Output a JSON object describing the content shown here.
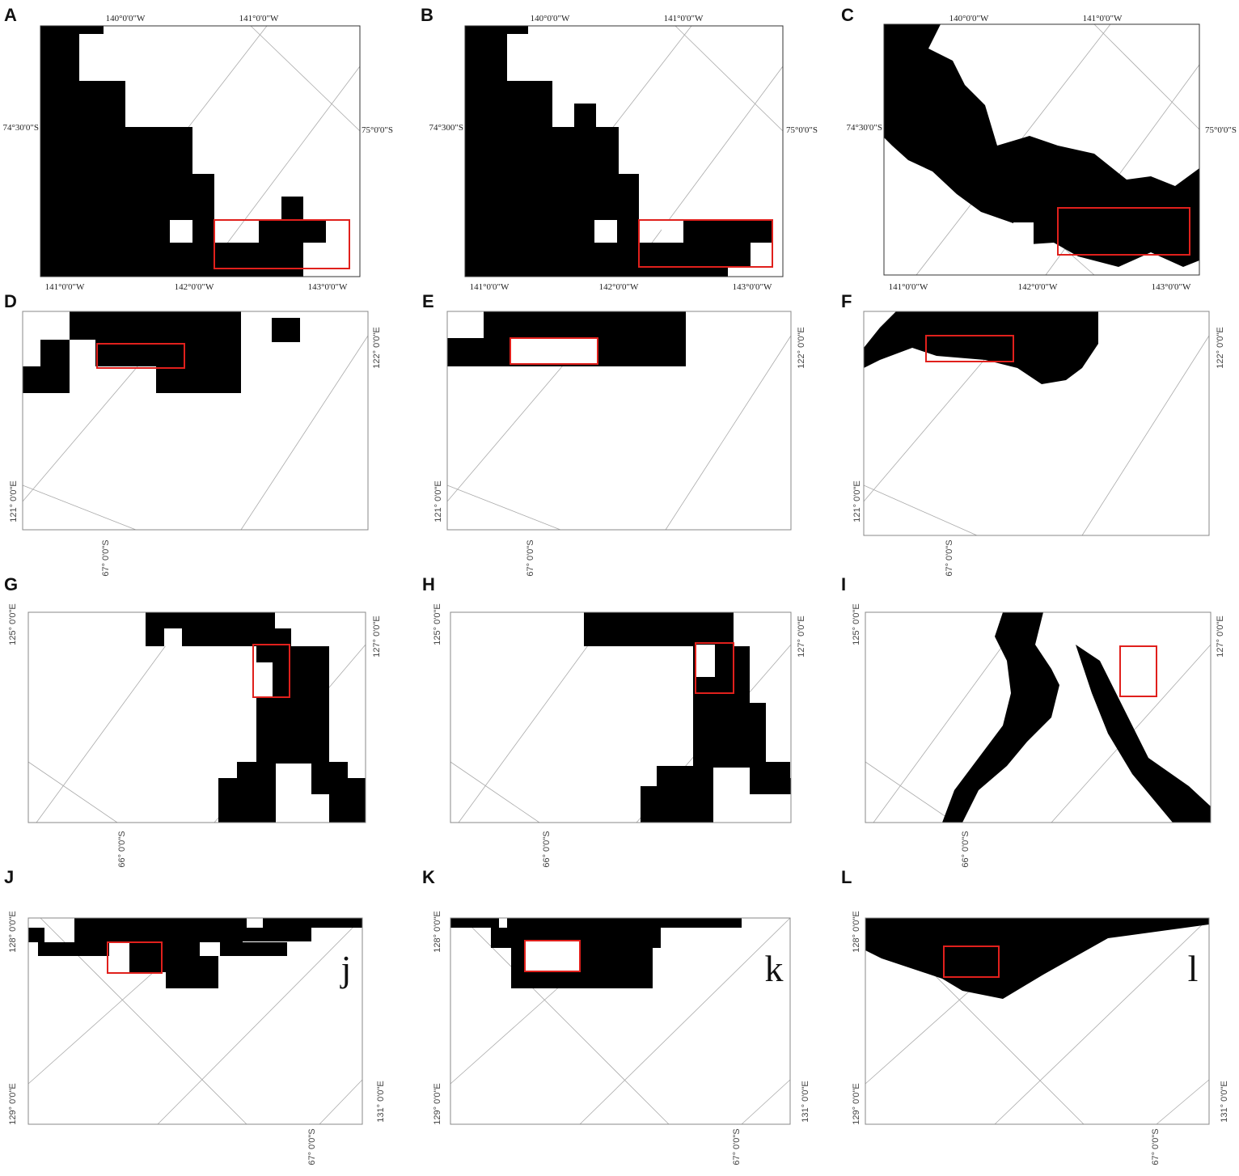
{
  "panels": [
    {
      "letter": "A",
      "labels": [
        "140°0'0\"W",
        "141°0'0\"W",
        "74°30'0\"S",
        "75°0'0\"S",
        "141°0'0\"W",
        "142°0'0\"W",
        "143°0'0\"W"
      ]
    },
    {
      "letter": "B",
      "labels": [
        "140°0'0\"W",
        "141°0'0\"W",
        "74°300\"S",
        "75°0'0\"S",
        "141°0'0\"W",
        "142°0'0\"W",
        "143°0'0\"W"
      ]
    },
    {
      "letter": "C",
      "labels": [
        "140°0'0\"W",
        "141°0'0\"W",
        "74°30'0\"S",
        "75°0'0\"S",
        "141°0'0\"W",
        "142°0'0\"W",
        "143°0'0\"W"
      ]
    },
    {
      "letter": "D",
      "labels": [
        "122° 0'0\"E",
        "121° 0'0\"E",
        "67° 0'0\"S"
      ]
    },
    {
      "letter": "E",
      "labels": [
        "122° 0'0\"E",
        "121° 0'0\"E",
        "67° 0'0\"S"
      ]
    },
    {
      "letter": "F",
      "labels": [
        "122° 0'0\"E",
        "121° 0'0\"E",
        "67° 0'0\"S"
      ]
    },
    {
      "letter": "G",
      "labels": [
        "125° 0'0\"E",
        "127° 0'0\"E",
        "66° 0'0\"S"
      ]
    },
    {
      "letter": "H",
      "labels": [
        "125° 0'0\"E",
        "127° 0'0\"E",
        "66° 0'0\"S"
      ]
    },
    {
      "letter": "I",
      "labels": [
        "125° 0'0\"E",
        "127° 0'0\"E",
        "66° 0'0\"S"
      ]
    },
    {
      "letter": "J",
      "labels": [
        "128° 0'0\"E",
        "129° 0'0\"E",
        "131° 0'0\"E",
        "67° 0'0\"S"
      ],
      "annotation": "j"
    },
    {
      "letter": "K",
      "labels": [
        "128° 0'0\"E",
        "129° 0'0\"E",
        "131° 0'0\"E",
        "67° 0'0\"S"
      ],
      "annotation": "k"
    },
    {
      "letter": "L",
      "labels": [
        "128° 0'0\"E",
        "129° 0'0\"E",
        "131° 0'0\"E",
        "67° 0'0\"S"
      ],
      "annotation": "l"
    }
  ]
}
